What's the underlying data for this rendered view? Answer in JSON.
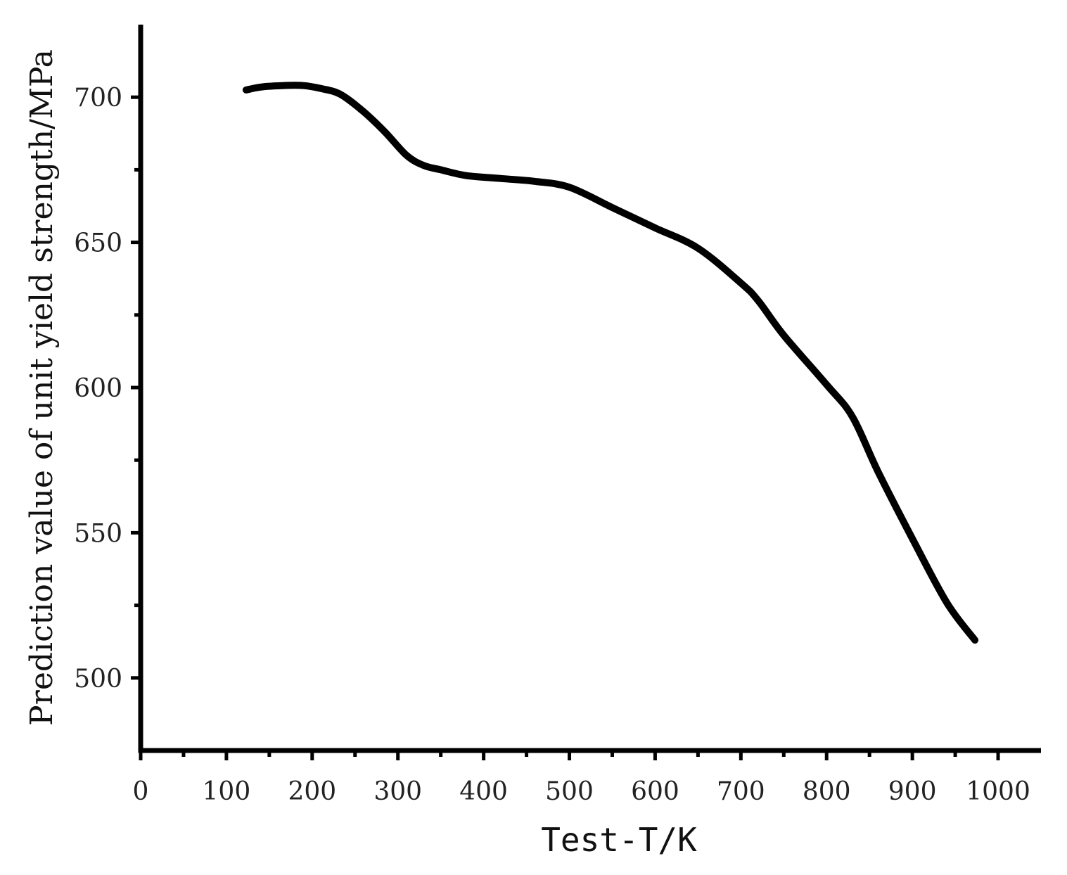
{
  "chart_data": {
    "type": "line",
    "title": "",
    "xlabel": "Test-T/K",
    "ylabel": "Prediction value of unit yield strength/MPa",
    "xlim": [
      0,
      1050
    ],
    "ylim": [
      475,
      725
    ],
    "x_ticks": [
      0,
      100,
      200,
      300,
      400,
      500,
      600,
      700,
      800,
      900,
      1000
    ],
    "y_ticks": [
      500,
      550,
      600,
      650,
      700
    ],
    "x_minor_ticks": [
      50,
      150,
      250,
      350,
      450,
      550,
      650,
      750,
      850,
      950
    ],
    "y_minor_ticks": [
      525,
      575,
      625,
      675
    ],
    "grid": false,
    "line_color": "#000000",
    "series": [
      {
        "name": "",
        "x": [
          123,
          140,
          165,
          190,
          210,
          233,
          260,
          285,
          310,
          330,
          350,
          380,
          420,
          460,
          500,
          550,
          600,
          650,
          700,
          720,
          750,
          800,
          830,
          860,
          900,
          940,
          973
        ],
        "y": [
          702.5,
          703.5,
          704,
          704,
          703,
          701,
          695,
          688,
          680,
          676.5,
          675,
          673,
          672,
          671,
          669,
          662,
          655,
          648,
          636,
          630,
          618,
          601,
          590,
          571,
          548,
          526,
          513
        ]
      }
    ]
  }
}
